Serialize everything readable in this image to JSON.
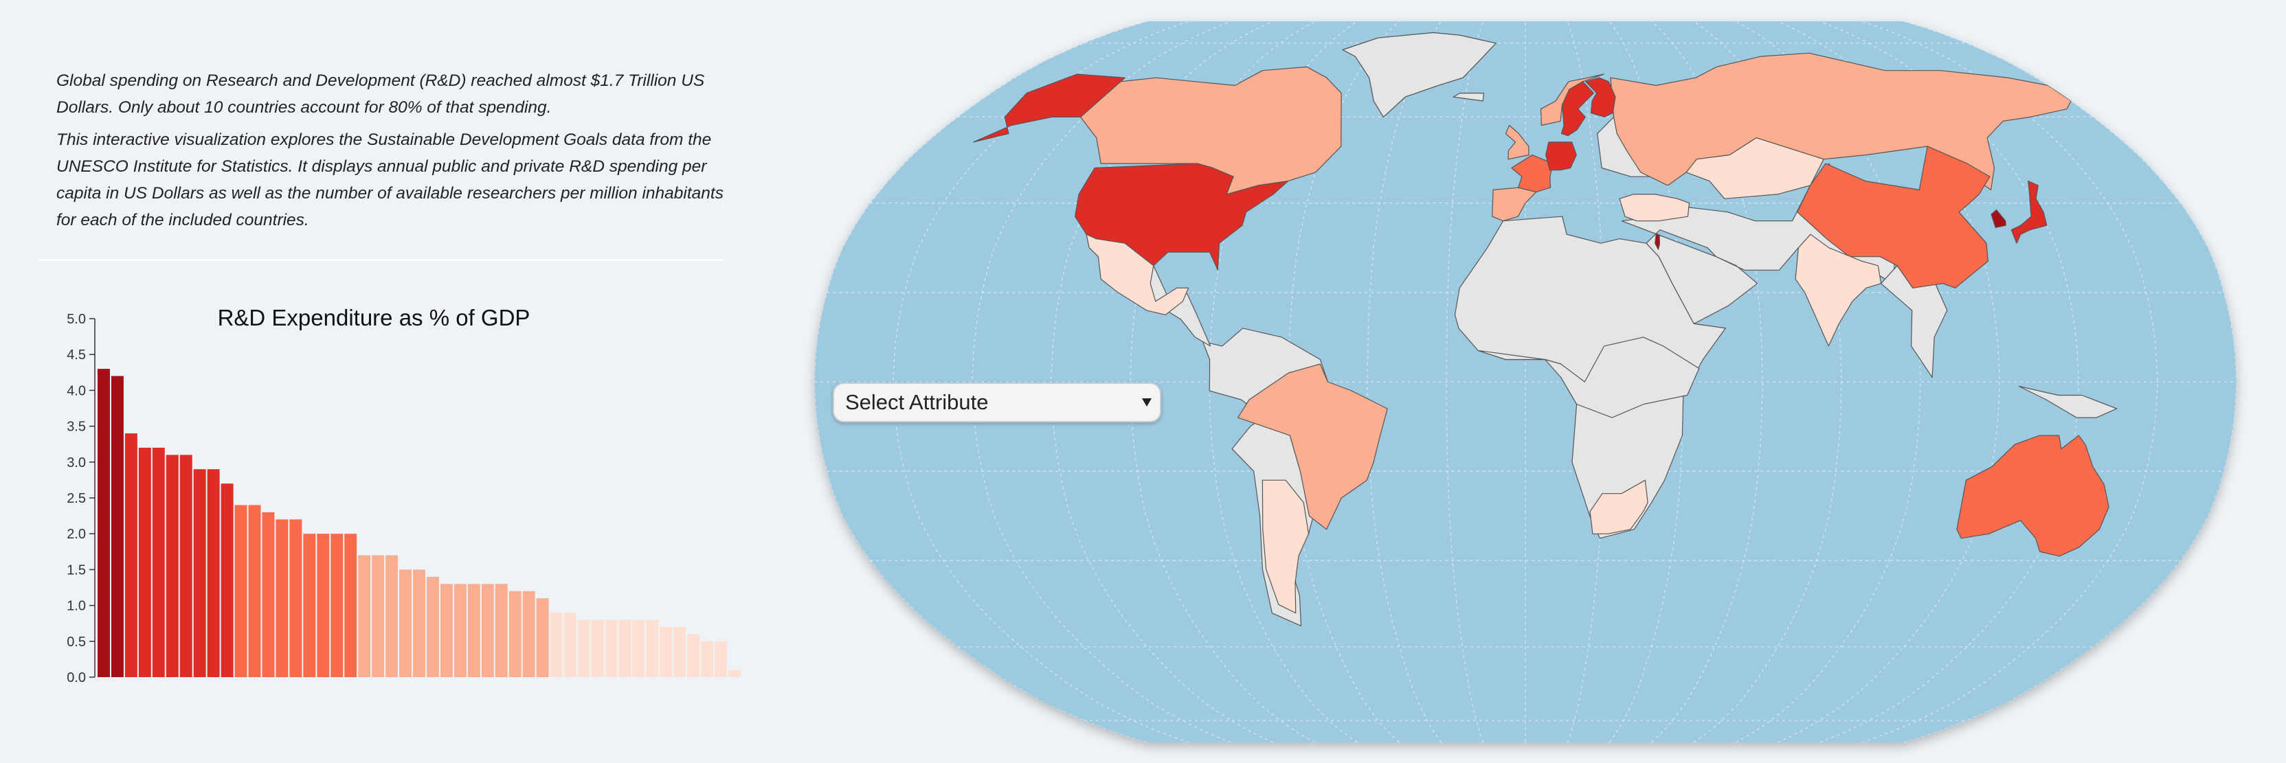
{
  "intro": {
    "paragraph1": "Global spending on Research and Development (R&D) reached almost $1.7 Trillion US Dollars. Only about 10 countries account for 80% of that spending.",
    "paragraph2": "This interactive visualization explores the Sustainable Development Goals data from the UNESCO Institute for Statistics. It displays annual public and private R&D spending per capita in US Dollars as well as the number of available researchers per million inhabitants for each of the included countries."
  },
  "select": {
    "label": "Select Attribute",
    "arrow_icon": "triangle-down-icon"
  },
  "colors": {
    "page_background": "#eef3f7",
    "ocean": "#9ecae1",
    "no_data": "#e5e5e5",
    "scale": [
      "#fee0d2",
      "#fcae91",
      "#fb6a4a",
      "#de2d26",
      "#a50f15"
    ]
  },
  "chart_data": {
    "type": "bar",
    "title": "R&D Expenditure as % of GDP",
    "xlabel": "",
    "ylabel": "",
    "ylim": [
      0,
      5
    ],
    "yticks": [
      "0.0",
      "0.5",
      "1.0",
      "1.5",
      "2.0",
      "2.5",
      "3.0",
      "3.5",
      "4.0",
      "4.5",
      "5.0"
    ],
    "grid": false,
    "values": [
      4.3,
      4.2,
      3.4,
      3.2,
      3.2,
      3.1,
      3.1,
      2.9,
      2.9,
      2.7,
      2.4,
      2.4,
      2.3,
      2.2,
      2.2,
      2.0,
      2.0,
      2.0,
      2.0,
      1.7,
      1.7,
      1.7,
      1.5,
      1.5,
      1.4,
      1.3,
      1.3,
      1.3,
      1.3,
      1.3,
      1.2,
      1.2,
      1.1,
      0.9,
      0.9,
      0.8,
      0.8,
      0.8,
      0.8,
      0.8,
      0.8,
      0.7,
      0.7,
      0.6,
      0.5,
      0.5,
      0.1
    ]
  },
  "map": {
    "projection": "robinson",
    "countries": [
      {
        "name": "United States",
        "level": 3
      },
      {
        "name": "Alaska",
        "level": 3
      },
      {
        "name": "Canada",
        "level": 1
      },
      {
        "name": "Greenland",
        "level": -1
      },
      {
        "name": "Mexico",
        "level": 0
      },
      {
        "name": "Brazil",
        "level": 1
      },
      {
        "name": "Argentina",
        "level": 0
      },
      {
        "name": "Russia",
        "level": 1
      },
      {
        "name": "China",
        "level": 2
      },
      {
        "name": "India",
        "level": 0
      },
      {
        "name": "Australia",
        "level": 2
      },
      {
        "name": "Japan",
        "level": 3
      },
      {
        "name": "South Korea",
        "level": 4
      },
      {
        "name": "Sweden",
        "level": 3
      },
      {
        "name": "Finland",
        "level": 3
      },
      {
        "name": "Norway",
        "level": 1
      },
      {
        "name": "Germany",
        "level": 3
      },
      {
        "name": "France",
        "level": 2
      },
      {
        "name": "Spain",
        "level": 1
      },
      {
        "name": "United Kingdom",
        "level": 1
      },
      {
        "name": "Israel",
        "level": 4
      },
      {
        "name": "South Africa",
        "level": 0
      },
      {
        "name": "Turkey",
        "level": 0
      },
      {
        "name": "Kazakhstan",
        "level": 0
      }
    ]
  }
}
